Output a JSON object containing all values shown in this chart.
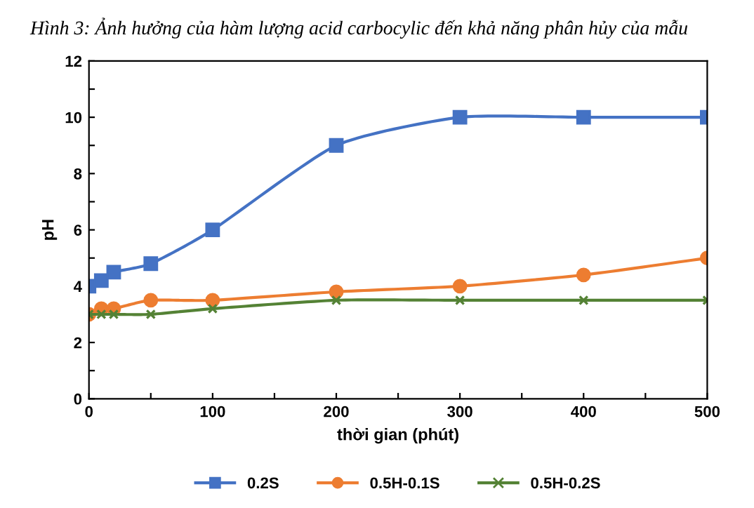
{
  "chart_data": {
    "type": "line",
    "title": "Hình 3: Ảnh hưởng của hàm lượng acid carbocylic đến khả năng phân hủy của mẫu",
    "xlabel": "thời gian (phút)",
    "ylabel": "pH",
    "x": [
      0,
      10,
      20,
      50,
      100,
      200,
      300,
      400,
      500
    ],
    "series": [
      {
        "name": "0.2S",
        "color": "#4472c4",
        "marker": "square",
        "values": [
          4,
          4.2,
          4.5,
          4.8,
          6,
          9,
          10,
          10,
          10
        ]
      },
      {
        "name": "0.5H-0.1S",
        "color": "#ed7d31",
        "marker": "circle",
        "values": [
          3,
          3.2,
          3.2,
          3.5,
          3.5,
          3.8,
          4,
          4.4,
          5
        ]
      },
      {
        "name": "0.5H-0.2S",
        "color": "#548235",
        "marker": "cross",
        "values": [
          3,
          3,
          3,
          3,
          3.2,
          3.5,
          3.5,
          3.5,
          3.5
        ]
      }
    ],
    "xlim": [
      0,
      500
    ],
    "ylim": [
      0,
      12
    ],
    "xticks": [
      0,
      {
        "value": 50,
        "label": null
      },
      100,
      {
        "value": 150,
        "label": null
      },
      200,
      {
        "value": 250,
        "label": null
      },
      300,
      {
        "value": 350,
        "label": null
      },
      400,
      {
        "value": 450,
        "label": null
      },
      500
    ],
    "yticks": [
      0,
      {
        "value": 1,
        "label": null
      },
      2,
      {
        "value": 3,
        "label": null
      },
      4,
      {
        "value": 5,
        "label": null
      },
      6,
      {
        "value": 7,
        "label": null
      },
      8,
      {
        "value": 9,
        "label": null
      },
      10,
      {
        "value": 11,
        "label": null
      },
      12
    ],
    "grid": false,
    "legend": "bottom",
    "line_style": "solid"
  }
}
